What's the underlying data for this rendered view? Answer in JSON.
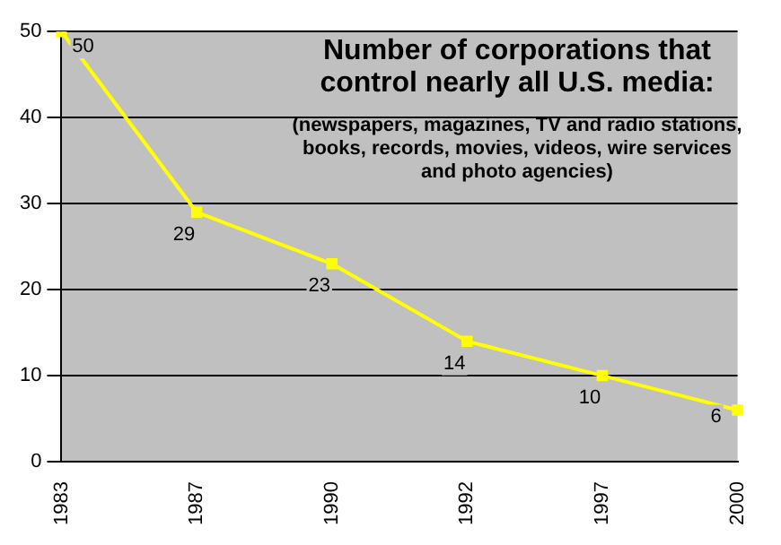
{
  "chart_data": {
    "type": "line",
    "title": "Number of corporations that control nearly all U.S. media:",
    "subtitle": "(newspapers, magazines, TV and radio stations, books, records, movies, videos, wire services and photo agencies)",
    "categories": [
      "1983",
      "1987",
      "1990",
      "1992",
      "1997",
      "2000"
    ],
    "series": [
      {
        "color": "#ffff00",
        "values": [
          50,
          29,
          23,
          14,
          10,
          6
        ]
      }
    ],
    "ylim": [
      0,
      50
    ],
    "yticks": [
      0,
      10,
      20,
      30,
      40,
      50
    ],
    "grid": "y",
    "legend": false,
    "marker": "square",
    "line_style": "solid",
    "data_labels": true
  }
}
